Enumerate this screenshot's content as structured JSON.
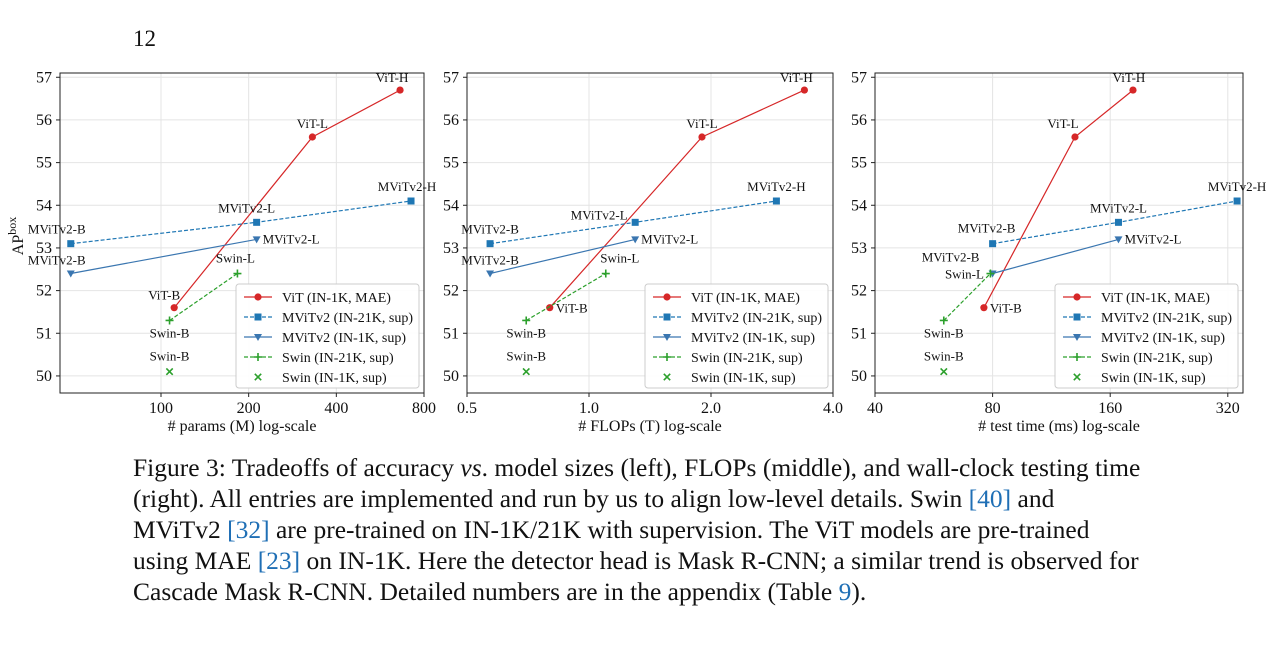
{
  "page_number": "12",
  "caption": {
    "p1": "Figure 3: Tradeoffs of accuracy ",
    "vs": "vs",
    "p2": ". model sizes (left), FLOPs (middle), and wall-clock testing time (right). All entries are implemented and run by us to align low-level details. Swin ",
    "ref40": "[40]",
    "p3": " and MViTv2 ",
    "ref32": "[32]",
    "p4": " are pre-trained on IN-1K/21K with supervision. The ViT models are pre-trained using MAE ",
    "ref23": "[23]",
    "p5": " on IN-1K. Here the detector head is Mask R-CNN; a similar trend is observed for Cascade Mask R-CNN. Detailed numbers are in the appendix (Table ",
    "ref9": "9",
    "p6": ")."
  },
  "colors": {
    "vit": "#d62728",
    "mvit_21k": "#1f77b4",
    "mvit_1k": "#3a76b0",
    "swin_21k": "#2ca02c",
    "swin_1k": "#2ca02c",
    "caption_ref": "#1f6fb5"
  },
  "chart_data": [
    {
      "type": "line",
      "xlabel": "# params (M) log-scale",
      "ylabel": "AP",
      "ylabel_sup": "box",
      "xscale": "log",
      "xlim": [
        45,
        800
      ],
      "ylim": [
        49.6,
        57.1
      ],
      "xticks": [
        100,
        200,
        400,
        800
      ],
      "xtick_labels": [
        "100",
        "200",
        "400",
        "800"
      ],
      "yticks": [
        50,
        51,
        52,
        53,
        54,
        55,
        56,
        57
      ],
      "legend": "lower-right",
      "series": [
        {
          "name": "ViT (IN-1K, MAE)",
          "key": "vit",
          "marker": "circle",
          "dash": "solid",
          "points": [
            {
              "x": 111,
              "y": 51.6,
              "label": "ViT-B"
            },
            {
              "x": 331,
              "y": 55.6,
              "label": "ViT-L"
            },
            {
              "x": 662,
              "y": 56.7,
              "label": "ViT-H"
            }
          ]
        },
        {
          "name": "MViTv2 (IN-21K, sup)",
          "key": "mvit_21k",
          "marker": "square",
          "dash": "dashed",
          "points": [
            {
              "x": 49,
              "y": 53.1,
              "label": "MViTv2-B"
            },
            {
              "x": 213,
              "y": 53.6,
              "label": "MViTv2-L"
            },
            {
              "x": 722,
              "y": 54.1,
              "label": "MViTv2-H"
            }
          ]
        },
        {
          "name": "MViTv2 (IN-1K, sup)",
          "key": "mvit_1k",
          "marker": "triangle",
          "dash": "solid",
          "points": [
            {
              "x": 49,
              "y": 52.4,
              "label": "MViTv2-B"
            },
            {
              "x": 213,
              "y": 53.2,
              "label": "MViTv2-L"
            }
          ]
        },
        {
          "name": "Swin (IN-21K, sup)",
          "key": "swin_21k",
          "marker": "plus",
          "dash": "dashed",
          "points": [
            {
              "x": 107,
              "y": 51.3,
              "label": "Swin-B"
            },
            {
              "x": 183,
              "y": 52.4,
              "label": "Swin-L"
            }
          ]
        },
        {
          "name": "Swin (IN-1K, sup)",
          "key": "swin_1k",
          "marker": "x",
          "dash": "none",
          "points": [
            {
              "x": 107,
              "y": 50.1,
              "label": "Swin-B"
            }
          ]
        }
      ]
    },
    {
      "type": "line",
      "xlabel": "# FLOPs (T) log-scale",
      "ylabel": "",
      "ylabel_sup": "",
      "xscale": "log",
      "xlim": [
        0.5,
        4.0
      ],
      "ylim": [
        49.6,
        57.1
      ],
      "xticks": [
        0.5,
        1.0,
        2.0,
        4.0
      ],
      "xtick_labels": [
        "0.5",
        "1.0",
        "2.0",
        "4.0"
      ],
      "yticks": [
        50,
        51,
        52,
        53,
        54,
        55,
        56,
        57
      ],
      "legend": "lower-right",
      "series": [
        {
          "name": "ViT (IN-1K, MAE)",
          "key": "vit",
          "marker": "circle",
          "dash": "solid",
          "points": [
            {
              "x": 0.8,
              "y": 51.6,
              "label": "ViT-B"
            },
            {
              "x": 1.9,
              "y": 55.6,
              "label": "ViT-L"
            },
            {
              "x": 3.4,
              "y": 56.7,
              "label": "ViT-H"
            }
          ]
        },
        {
          "name": "MViTv2 (IN-21K, sup)",
          "key": "mvit_21k",
          "marker": "square",
          "dash": "dashed",
          "points": [
            {
              "x": 0.57,
              "y": 53.1,
              "label": "MViTv2-B"
            },
            {
              "x": 1.3,
              "y": 53.6,
              "label": "MViTv2-L"
            },
            {
              "x": 2.9,
              "y": 54.1,
              "label": "MViTv2-H"
            }
          ]
        },
        {
          "name": "MViTv2 (IN-1K, sup)",
          "key": "mvit_1k",
          "marker": "triangle",
          "dash": "solid",
          "points": [
            {
              "x": 0.57,
              "y": 52.4,
              "label": "MViTv2-B"
            },
            {
              "x": 1.3,
              "y": 53.2,
              "label": "MViTv2-L"
            }
          ]
        },
        {
          "name": "Swin (IN-21K, sup)",
          "key": "swin_21k",
          "marker": "plus",
          "dash": "dashed",
          "points": [
            {
              "x": 0.7,
              "y": 51.3,
              "label": "Swin-B"
            },
            {
              "x": 1.1,
              "y": 52.4,
              "label": "Swin-L"
            }
          ]
        },
        {
          "name": "Swin (IN-1K, sup)",
          "key": "swin_1k",
          "marker": "x",
          "dash": "none",
          "points": [
            {
              "x": 0.7,
              "y": 50.1,
              "label": "Swin-B"
            }
          ]
        }
      ]
    },
    {
      "type": "line",
      "xlabel": "# test time (ms) log-scale",
      "ylabel": "",
      "ylabel_sup": "",
      "xscale": "log",
      "xlim": [
        40,
        350
      ],
      "ylim": [
        49.6,
        57.1
      ],
      "xticks": [
        40,
        80,
        160,
        320
      ],
      "xtick_labels": [
        "40",
        "80",
        "160",
        "320"
      ],
      "yticks": [
        50,
        51,
        52,
        53,
        54,
        55,
        56,
        57
      ],
      "legend": "lower-right",
      "series": [
        {
          "name": "ViT (IN-1K, MAE)",
          "key": "vit",
          "marker": "circle",
          "dash": "solid",
          "points": [
            {
              "x": 76,
              "y": 51.6,
              "label": "ViT-B"
            },
            {
              "x": 130,
              "y": 55.6,
              "label": "ViT-L"
            },
            {
              "x": 183,
              "y": 56.7,
              "label": "ViT-H"
            }
          ]
        },
        {
          "name": "MViTv2 (IN-21K, sup)",
          "key": "mvit_21k",
          "marker": "square",
          "dash": "dashed",
          "points": [
            {
              "x": 80,
              "y": 53.1,
              "label": "MViTv2-B"
            },
            {
              "x": 168,
              "y": 53.6,
              "label": "MViTv2-L"
            },
            {
              "x": 338,
              "y": 54.1,
              "label": "MViTv2-H"
            }
          ]
        },
        {
          "name": "MViTv2 (IN-1K, sup)",
          "key": "mvit_1k",
          "marker": "triangle",
          "dash": "solid",
          "points": [
            {
              "x": 80,
              "y": 52.4,
              "label": "MViTv2-B"
            },
            {
              "x": 168,
              "y": 53.2,
              "label": "MViTv2-L"
            }
          ]
        },
        {
          "name": "Swin (IN-21K, sup)",
          "key": "swin_21k",
          "marker": "plus",
          "dash": "dashed",
          "points": [
            {
              "x": 60,
              "y": 51.3,
              "label": "Swin-B"
            },
            {
              "x": 79,
              "y": 52.4,
              "label": "Swin-L"
            }
          ]
        },
        {
          "name": "Swin (IN-1K, sup)",
          "key": "swin_1k",
          "marker": "x",
          "dash": "none",
          "points": [
            {
              "x": 60,
              "y": 50.1,
              "label": "Swin-B"
            }
          ]
        }
      ]
    }
  ]
}
